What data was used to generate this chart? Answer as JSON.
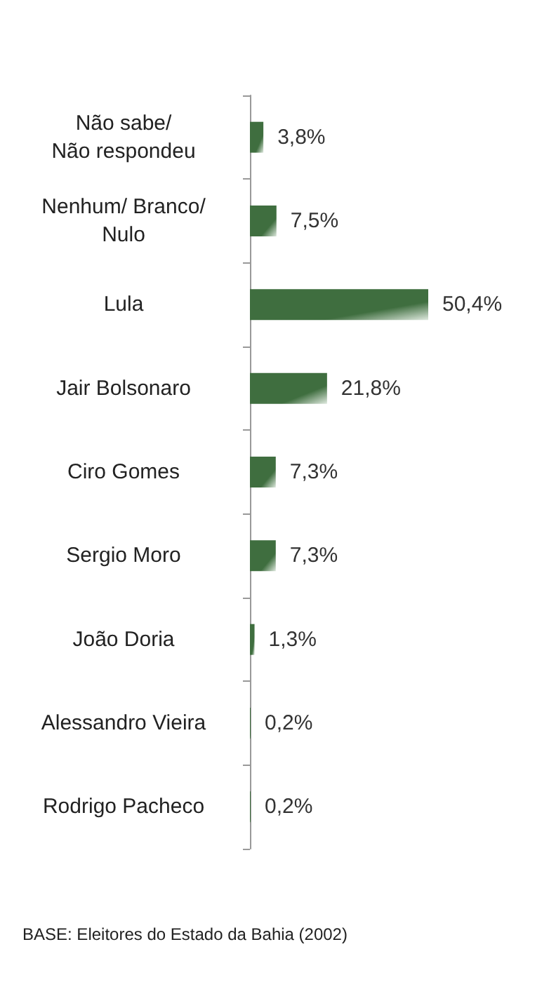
{
  "chart_data": {
    "type": "bar",
    "orientation": "horizontal",
    "categories": [
      "Não sabe/\nNão respondeu",
      "Nenhum/ Branco/\nNulo",
      "Lula",
      "Jair Bolsonaro",
      "Ciro Gomes",
      "Sergio Moro",
      "João Doria",
      "Alessandro Vieira",
      "Rodrigo Pacheco"
    ],
    "values": [
      3.8,
      7.5,
      50.4,
      21.8,
      7.3,
      7.3,
      1.3,
      0.2,
      0.2
    ],
    "value_labels": [
      "3,8%",
      "7,5%",
      "50,4%",
      "21,8%",
      "7,3%",
      "7,3%",
      "1,3%",
      "0,2%",
      "0,2%"
    ],
    "color": "#3f6e3f",
    "annotations": [
      "BASE: Eleitores do Estado da Bahia (2002)"
    ]
  }
}
